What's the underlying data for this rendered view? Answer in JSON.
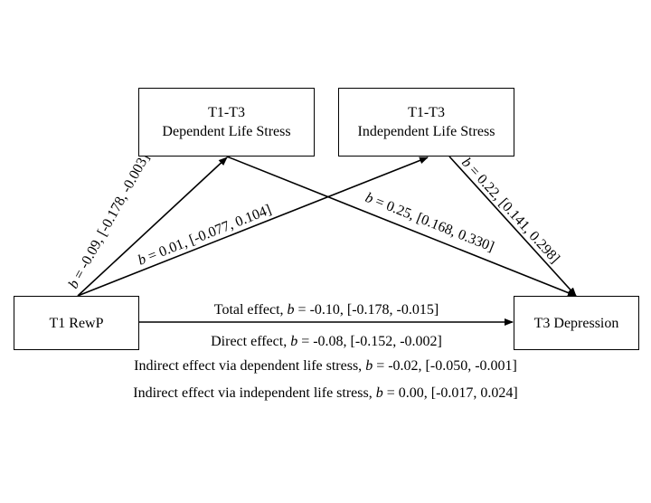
{
  "boxes": {
    "dependent": {
      "line1": "T1-T3",
      "line2": "Dependent Life Stress"
    },
    "independent": {
      "line1": "T1-T3",
      "line2": "Independent Life Stress"
    },
    "predictor": {
      "label": "T1 RewP"
    },
    "outcome": {
      "label": "T3 Depression"
    }
  },
  "paths": {
    "a_dependent": {
      "b": "b",
      "text": " = -0.09, [-0.178, -0.003]"
    },
    "a_independent": {
      "b": "b",
      "text": " = 0.01, [-0.077, 0.104]"
    },
    "b_dependent": {
      "b": "b",
      "text": " = 0.25, [0.168, 0.330]"
    },
    "b_independent": {
      "b": "b",
      "text": " = 0.22, [0.141, 0.298]"
    }
  },
  "effects": {
    "total": {
      "prefix": "Total effect, ",
      "b": "b",
      "text": " = -0.10, [-0.178, -0.015]"
    },
    "direct": {
      "prefix": "Direct effect, ",
      "b": "b",
      "text": " = -0.08, [-0.152, -0.002]"
    },
    "indirect_dependent": {
      "prefix": "Indirect effect via dependent life stress, ",
      "b": "b",
      "text": " = -0.02, [-0.050, -0.001]"
    },
    "indirect_independent": {
      "prefix": "Indirect effect via independent life stress, ",
      "b": "b",
      "text": " = 0.00, [-0.017, 0.024]"
    }
  }
}
